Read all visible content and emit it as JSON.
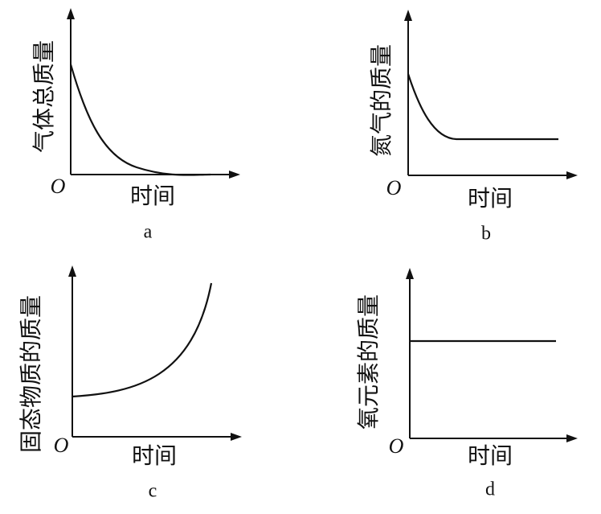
{
  "panels": [
    {
      "y_label": "气体总质量",
      "origin": "O",
      "x_label": "时间",
      "caption": "a"
    },
    {
      "y_label": "氮气的质量",
      "origin": "O",
      "x_label": "时间",
      "caption": "b"
    },
    {
      "y_label": "固态物质的质量",
      "origin": "O",
      "x_label": "时间",
      "caption": "c"
    },
    {
      "y_label": "氧元素的质量",
      "origin": "O",
      "x_label": "时间",
      "caption": "d"
    }
  ]
}
